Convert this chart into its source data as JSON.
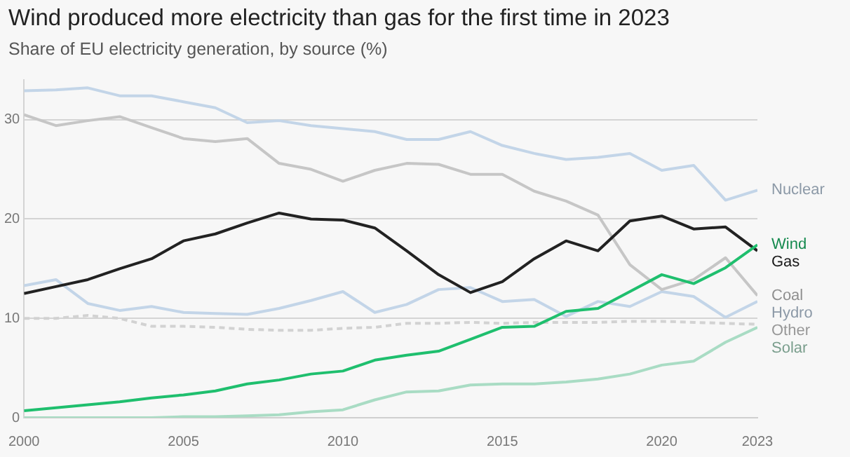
{
  "chart_data": {
    "type": "line",
    "title": "Wind produced more electricity than gas for the first time in 2023",
    "subtitle": "Share of EU electricity generation, by source (%)",
    "x": [
      2000,
      2001,
      2002,
      2003,
      2004,
      2005,
      2006,
      2007,
      2008,
      2009,
      2010,
      2011,
      2012,
      2013,
      2014,
      2015,
      2016,
      2017,
      2018,
      2019,
      2020,
      2021,
      2022,
      2023
    ],
    "xlim": [
      2000,
      2023
    ],
    "xticks": [
      2000,
      2005,
      2010,
      2015,
      2020,
      2023
    ],
    "ylim": [
      0,
      34
    ],
    "yticks": [
      0,
      10,
      20,
      30
    ],
    "grid": "y",
    "legend": false,
    "marker": "none",
    "series": [
      {
        "name": "Nuclear",
        "color": "#c3d5e8",
        "values": [
          32.9,
          33.0,
          33.2,
          32.4,
          32.4,
          31.8,
          31.2,
          29.7,
          29.9,
          29.4,
          29.1,
          28.8,
          28.0,
          28.0,
          28.8,
          27.4,
          26.6,
          26.0,
          26.2,
          26.6,
          24.9,
          25.4,
          21.9,
          22.9
        ]
      },
      {
        "name": "Wind",
        "color": "#1fbf6e",
        "values": [
          0.7,
          1.0,
          1.3,
          1.6,
          2.0,
          2.3,
          2.7,
          3.4,
          3.8,
          4.4,
          4.7,
          5.8,
          6.3,
          6.7,
          7.9,
          9.1,
          9.2,
          10.7,
          11.0,
          12.7,
          14.4,
          13.5,
          15.1,
          17.4
        ]
      },
      {
        "name": "Gas",
        "color": "#222222",
        "values": [
          12.5,
          13.2,
          13.9,
          15.0,
          16.0,
          17.8,
          18.5,
          19.6,
          20.6,
          20.0,
          19.9,
          19.1,
          16.8,
          14.4,
          12.6,
          13.7,
          16.0,
          17.8,
          16.8,
          19.8,
          20.3,
          19.0,
          19.2,
          16.8
        ]
      },
      {
        "name": "Coal",
        "color": "#c6c6c6",
        "values": [
          30.5,
          29.4,
          29.9,
          30.3,
          29.2,
          28.1,
          27.8,
          28.1,
          25.6,
          25.0,
          23.8,
          24.9,
          25.6,
          25.5,
          24.5,
          24.5,
          22.8,
          21.8,
          20.4,
          15.4,
          12.9,
          13.9,
          16.1,
          12.3
        ]
      },
      {
        "name": "Hydro",
        "color": "#c3d5e8",
        "values": [
          13.3,
          13.9,
          11.5,
          10.8,
          11.2,
          10.6,
          10.5,
          10.4,
          11.0,
          11.8,
          12.7,
          10.6,
          11.4,
          12.9,
          13.1,
          11.7,
          11.9,
          10.2,
          11.7,
          11.2,
          12.7,
          12.2,
          10.1,
          11.7
        ]
      },
      {
        "name": "Other",
        "color": "#d2d2d2",
        "line_style": "dashed",
        "values": [
          10.0,
          10.0,
          10.3,
          10.0,
          9.2,
          9.2,
          9.1,
          8.9,
          8.8,
          8.8,
          9.0,
          9.1,
          9.5,
          9.5,
          9.6,
          9.5,
          9.6,
          9.6,
          9.6,
          9.7,
          9.7,
          9.6,
          9.5,
          9.4
        ]
      },
      {
        "name": "Solar",
        "color": "#a9dcc4",
        "values": [
          0,
          0,
          0,
          0,
          0,
          0.1,
          0.1,
          0.2,
          0.3,
          0.6,
          0.8,
          1.8,
          2.6,
          2.7,
          3.3,
          3.4,
          3.4,
          3.6,
          3.9,
          4.4,
          5.3,
          5.7,
          7.6,
          9.1
        ]
      }
    ]
  }
}
